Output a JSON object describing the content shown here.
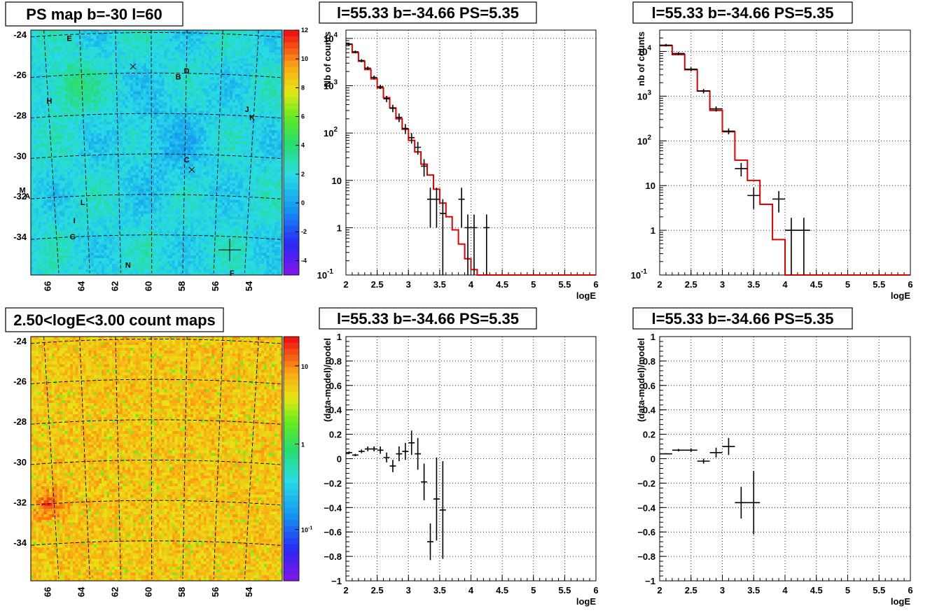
{
  "colors": {
    "model": "#e00000",
    "data": "#000000",
    "grid": "#000000"
  },
  "chart_data": [
    {
      "type": "heatmap",
      "title": "PS map b=-30 l=60",
      "colorbar": {
        "ticks": [
          "12",
          "10",
          "8",
          "6",
          "4",
          "2",
          "0",
          "-2",
          "-4"
        ],
        "range": [
          -5,
          12
        ],
        "palette": "root-rainbow"
      },
      "x_ticks": [
        "66",
        "64",
        "62",
        "60",
        "58",
        "56",
        "54"
      ],
      "y_ticks": [
        "-24",
        "-26",
        "-28",
        "-30",
        "-32",
        "-34"
      ],
      "xlim": [
        67.2,
        52.2
      ],
      "ylim": [
        -35.9,
        -23.8
      ],
      "sources": [
        {
          "label": "E",
          "l": 64.9,
          "b": -24.2
        },
        {
          "label": "D",
          "l": 57.9,
          "b": -25.8
        },
        {
          "label": "B",
          "l": 58.4,
          "b": -26.1
        },
        {
          "label": "H",
          "l": 66.1,
          "b": -27.3
        },
        {
          "label": "J",
          "l": 54.3,
          "b": -27.7
        },
        {
          "label": "K",
          "l": 54.0,
          "b": -28.1
        },
        {
          "label": "C",
          "l": 57.9,
          "b": -30.2
        },
        {
          "label": "M",
          "l": 67.7,
          "b": -31.7
        },
        {
          "label": "A",
          "l": 67.4,
          "b": -32.0
        },
        {
          "label": "L",
          "l": 64.1,
          "b": -32.3
        },
        {
          "label": "I",
          "l": 64.6,
          "b": -33.2
        },
        {
          "label": "G",
          "l": 64.7,
          "b": -34.0
        },
        {
          "label": "N",
          "l": 61.4,
          "b": -35.4
        },
        {
          "label": "F",
          "l": 55.2,
          "b": -35.8
        }
      ],
      "markers": [
        {
          "type": "x",
          "l": 61.1,
          "b": -25.6
        },
        {
          "type": "x",
          "l": 57.6,
          "b": -30.7
        },
        {
          "type": "plus",
          "l": 55.33,
          "b": -34.66
        }
      ]
    },
    {
      "type": "line",
      "title": "l=55.33 b=-34.66 PS=5.35",
      "xlabel": "logE",
      "ylabel": "Nb of counts",
      "ylog": true,
      "xlim": [
        2,
        6
      ],
      "ylim": [
        0.1,
        15000
      ],
      "x_ticks": [
        "2",
        "2.5",
        "3",
        "3.5",
        "4",
        "4.5",
        "5",
        "5.5",
        "6"
      ],
      "y_ticks": [
        {
          "v": 0.1,
          "t": "10",
          "sup": "-1"
        },
        {
          "v": 1,
          "t": "1"
        },
        {
          "v": 10,
          "t": "10"
        },
        {
          "v": 100,
          "t": "10",
          "sup": "2"
        },
        {
          "v": 1000,
          "t": "10",
          "sup": "3"
        },
        {
          "v": 10000,
          "t": "10",
          "sup": "4"
        }
      ],
      "series": [
        {
          "kind": "step",
          "edges": [
            2,
            2.1,
            2.2,
            2.3,
            2.4,
            2.5,
            2.6,
            2.7,
            2.8,
            2.9,
            3,
            3.1,
            3.2,
            3.3,
            3.4,
            3.5,
            3.6,
            3.7,
            3.8,
            3.9,
            4,
            4.1,
            4.2,
            4.3,
            6
          ],
          "values": [
            7500,
            5000,
            3300,
            2200,
            1400,
            900,
            560,
            340,
            200,
            120,
            70,
            40,
            22,
            13,
            6.5,
            3.3,
            1.7,
            0.9,
            0.45,
            0.22,
            0.13,
            0.1,
            0.1,
            0.1
          ]
        },
        {
          "kind": "points",
          "x": [
            2.05,
            2.15,
            2.25,
            2.35,
            2.45,
            2.55,
            2.65,
            2.75,
            2.85,
            2.95,
            3.05,
            3.15,
            3.25,
            3.35,
            3.45,
            3.55,
            3.65,
            3.75,
            3.85,
            3.95,
            4.05,
            4.25
          ],
          "y": [
            7600,
            5200,
            3400,
            2350,
            1500,
            950,
            530,
            335,
            215,
            125,
            80,
            50,
            20,
            4,
            4,
            2,
            null,
            null,
            4,
            1,
            1,
            1
          ],
          "err": [
            500,
            350,
            250,
            200,
            150,
            100,
            80,
            60,
            45,
            30,
            20,
            15,
            8,
            3,
            3,
            2,
            0,
            0,
            3,
            0.9,
            0.9,
            0.9
          ]
        }
      ]
    },
    {
      "type": "line",
      "title": "l=55.33 b=-34.66 PS=5.35",
      "xlabel": "logE",
      "ylabel": "nb of counts",
      "ylog": true,
      "xlim": [
        2,
        6
      ],
      "ylim": [
        0.1,
        30000
      ],
      "x_ticks": [
        "2",
        "2.5",
        "3",
        "3.5",
        "4",
        "4.5",
        "5",
        "5.5",
        "6"
      ],
      "y_ticks": [
        {
          "v": 0.1,
          "t": "10",
          "sup": "-1"
        },
        {
          "v": 1,
          "t": "1"
        },
        {
          "v": 10,
          "t": "10"
        },
        {
          "v": 100,
          "t": "10",
          "sup": "2"
        },
        {
          "v": 1000,
          "t": "10",
          "sup": "3"
        },
        {
          "v": 10000,
          "t": "10",
          "sup": "4"
        }
      ],
      "series": [
        {
          "kind": "step",
          "edges": [
            2,
            2.2,
            2.4,
            2.6,
            2.8,
            3,
            3.2,
            3.4,
            3.6,
            3.8,
            4,
            4.2,
            4.4,
            6
          ],
          "values": [
            13500,
            8500,
            3900,
            1300,
            480,
            160,
            37,
            13,
            3.8,
            0.62,
            0.1,
            0.1,
            0.1
          ]
        },
        {
          "kind": "points",
          "x": [
            2.1,
            2.3,
            2.5,
            2.7,
            2.9,
            3.1,
            3.3,
            3.5,
            3.9,
            4.1,
            4.3
          ],
          "y": [
            13800,
            9000,
            4000,
            1300,
            520,
            165,
            24,
            6,
            5,
            1,
            1
          ],
          "err": [
            900,
            700,
            400,
            150,
            70,
            25,
            8,
            3,
            2.5,
            0.9,
            0.9
          ]
        }
      ]
    },
    {
      "type": "heatmap",
      "title": "2.50<logE<3.00 count maps",
      "colorbar": {
        "ticks": [
          "10",
          "1",
          "10-1"
        ],
        "range": "log",
        "palette": "root-rainbow"
      },
      "x_ticks": [
        "66",
        "64",
        "62",
        "60",
        "58",
        "56",
        "54"
      ],
      "y_ticks": [
        "-24",
        "-26",
        "-28",
        "-30",
        "-32",
        "-34"
      ],
      "xlim": [
        67.2,
        52.2
      ],
      "ylim": [
        -35.9,
        -23.8
      ]
    },
    {
      "type": "scatter",
      "title": "l=55.33 b=-34.66 PS=5.35",
      "xlabel": "logE",
      "ylabel": "(data-model)/model",
      "xlim": [
        2,
        6
      ],
      "ylim": [
        -1,
        1
      ],
      "x_ticks": [
        "2",
        "2.5",
        "3",
        "3.5",
        "4",
        "4.5",
        "5",
        "5.5",
        "6"
      ],
      "y_ticks": [
        "1",
        "0.8",
        "0.6",
        "0.4",
        "0.2",
        "0",
        "−0.2",
        "−0.4",
        "−0.6",
        "−0.8",
        "−1"
      ],
      "series": [
        {
          "x": [
            2.05,
            2.15,
            2.25,
            2.35,
            2.45,
            2.55,
            2.65,
            2.75,
            2.85,
            2.95,
            3.05,
            3.15,
            3.25,
            3.35,
            3.45,
            3.55
          ],
          "y": [
            0.05,
            0.03,
            0.06,
            0.08,
            0.08,
            0.07,
            0.01,
            -0.06,
            0.04,
            0.06,
            0.13,
            0.04,
            -0.19,
            -0.68,
            -0.33,
            -0.42
          ],
          "err": [
            0.01,
            0.01,
            0.015,
            0.02,
            0.02,
            0.03,
            0.04,
            0.05,
            0.06,
            0.07,
            0.1,
            0.13,
            0.15,
            0.15,
            0.34,
            0.4
          ]
        }
      ]
    },
    {
      "type": "scatter",
      "title": "l=55.33 b=-34.66 PS=5.35",
      "xlabel": "logE",
      "ylabel": "(data-model)/model",
      "xlim": [
        2,
        6
      ],
      "ylim": [
        -1,
        1
      ],
      "x_ticks": [
        "2",
        "2.5",
        "3",
        "3.5",
        "4",
        "4.5",
        "5",
        "5.5",
        "6"
      ],
      "y_ticks": [
        "1",
        "0.8",
        "0.6",
        "0.4",
        "0.2",
        "0",
        "−0.2",
        "−0.4",
        "−0.6",
        "−0.8",
        "−1"
      ],
      "series": [
        {
          "x": [
            2.1,
            2.3,
            2.5,
            2.7,
            2.9,
            3.1,
            3.3,
            3.5
          ],
          "y": [
            0.04,
            0.07,
            0.07,
            -0.02,
            0.05,
            0.1,
            -0.36,
            -0.36
          ],
          "err": [
            0.005,
            0.01,
            0.015,
            0.02,
            0.04,
            0.07,
            0.13,
            0.26
          ]
        }
      ]
    }
  ]
}
